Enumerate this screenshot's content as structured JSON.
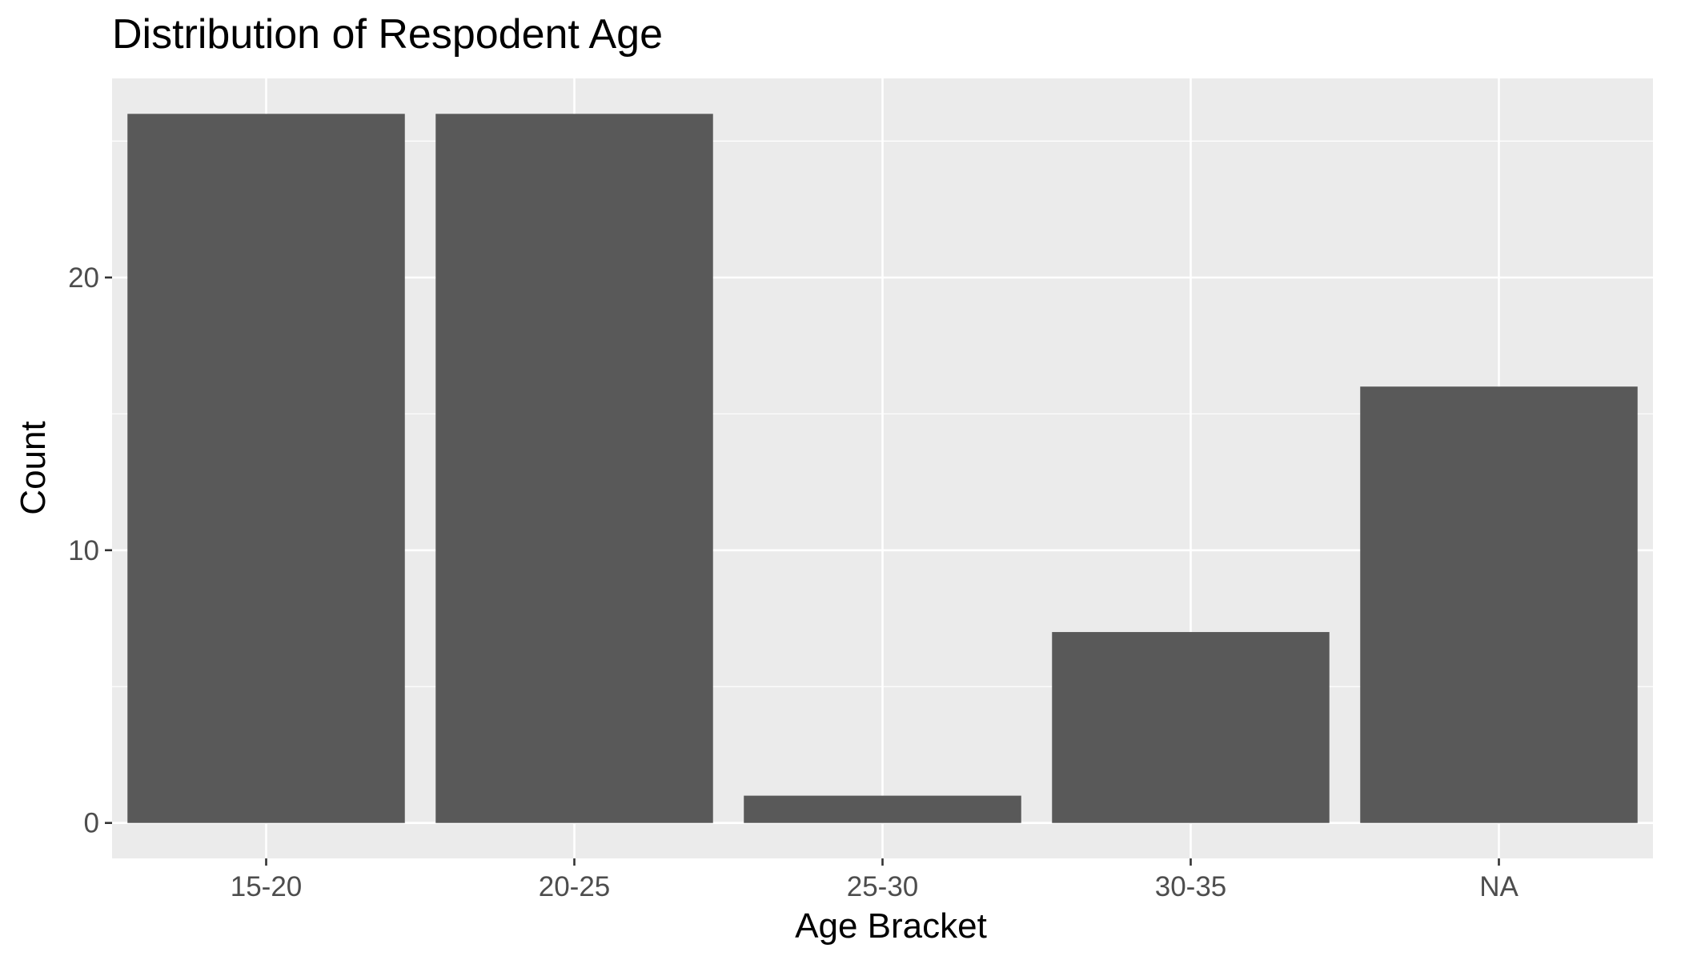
{
  "chart_data": {
    "type": "bar",
    "title": "Distribution of Respodent Age",
    "xlabel": "Age Bracket",
    "ylabel": "Count",
    "categories": [
      "15-20",
      "20-25",
      "25-30",
      "30-35",
      "NA"
    ],
    "values": [
      26,
      26,
      1,
      7,
      16
    ],
    "yticks": [
      "0",
      "10",
      "20"
    ],
    "ylim": [
      -1.3,
      27.3
    ],
    "grid": true,
    "legend": "none",
    "colors": {
      "panel_background": "#EBEBEB",
      "bar_fill": "#595959",
      "gridline": "#FFFFFF",
      "tick_text": "#4D4D4D"
    }
  }
}
